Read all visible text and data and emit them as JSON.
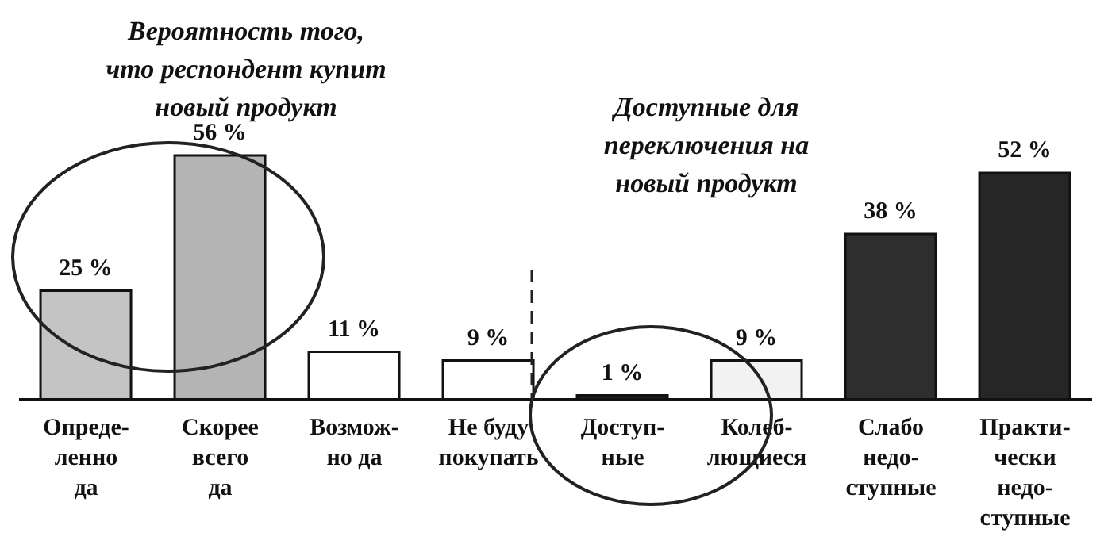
{
  "chart_data": {
    "type": "bar",
    "categories": [
      "Опреде-\nленно\nда",
      "Скорее\nвсего\nда",
      "Возмож-\nно да",
      "Не буду\nпокупать",
      "Доступ-\nные",
      "Колеб-\nлющиеся",
      "Слабо\nнедо-\nступные",
      "Практи-\nчески\nнедо-\nступные"
    ],
    "values": [
      25,
      56,
      11,
      9,
      1,
      9,
      38,
      52
    ],
    "colors": [
      "#c4c4c4",
      "#b4b4b4",
      "#ffffff",
      "#ffffff",
      "#222222",
      "#f2f2f2",
      "#2e2e2e",
      "#262626"
    ],
    "value_labels": [
      "25 %",
      "56 %",
      "11 %",
      "9 %",
      "1 %",
      "9 %",
      "38 %",
      "52 %"
    ],
    "annotations": [
      "Вероятность того,\nчто респондент купит\nновый продукт",
      "Доступные для\nпереключения на\nновый продукт"
    ]
  }
}
